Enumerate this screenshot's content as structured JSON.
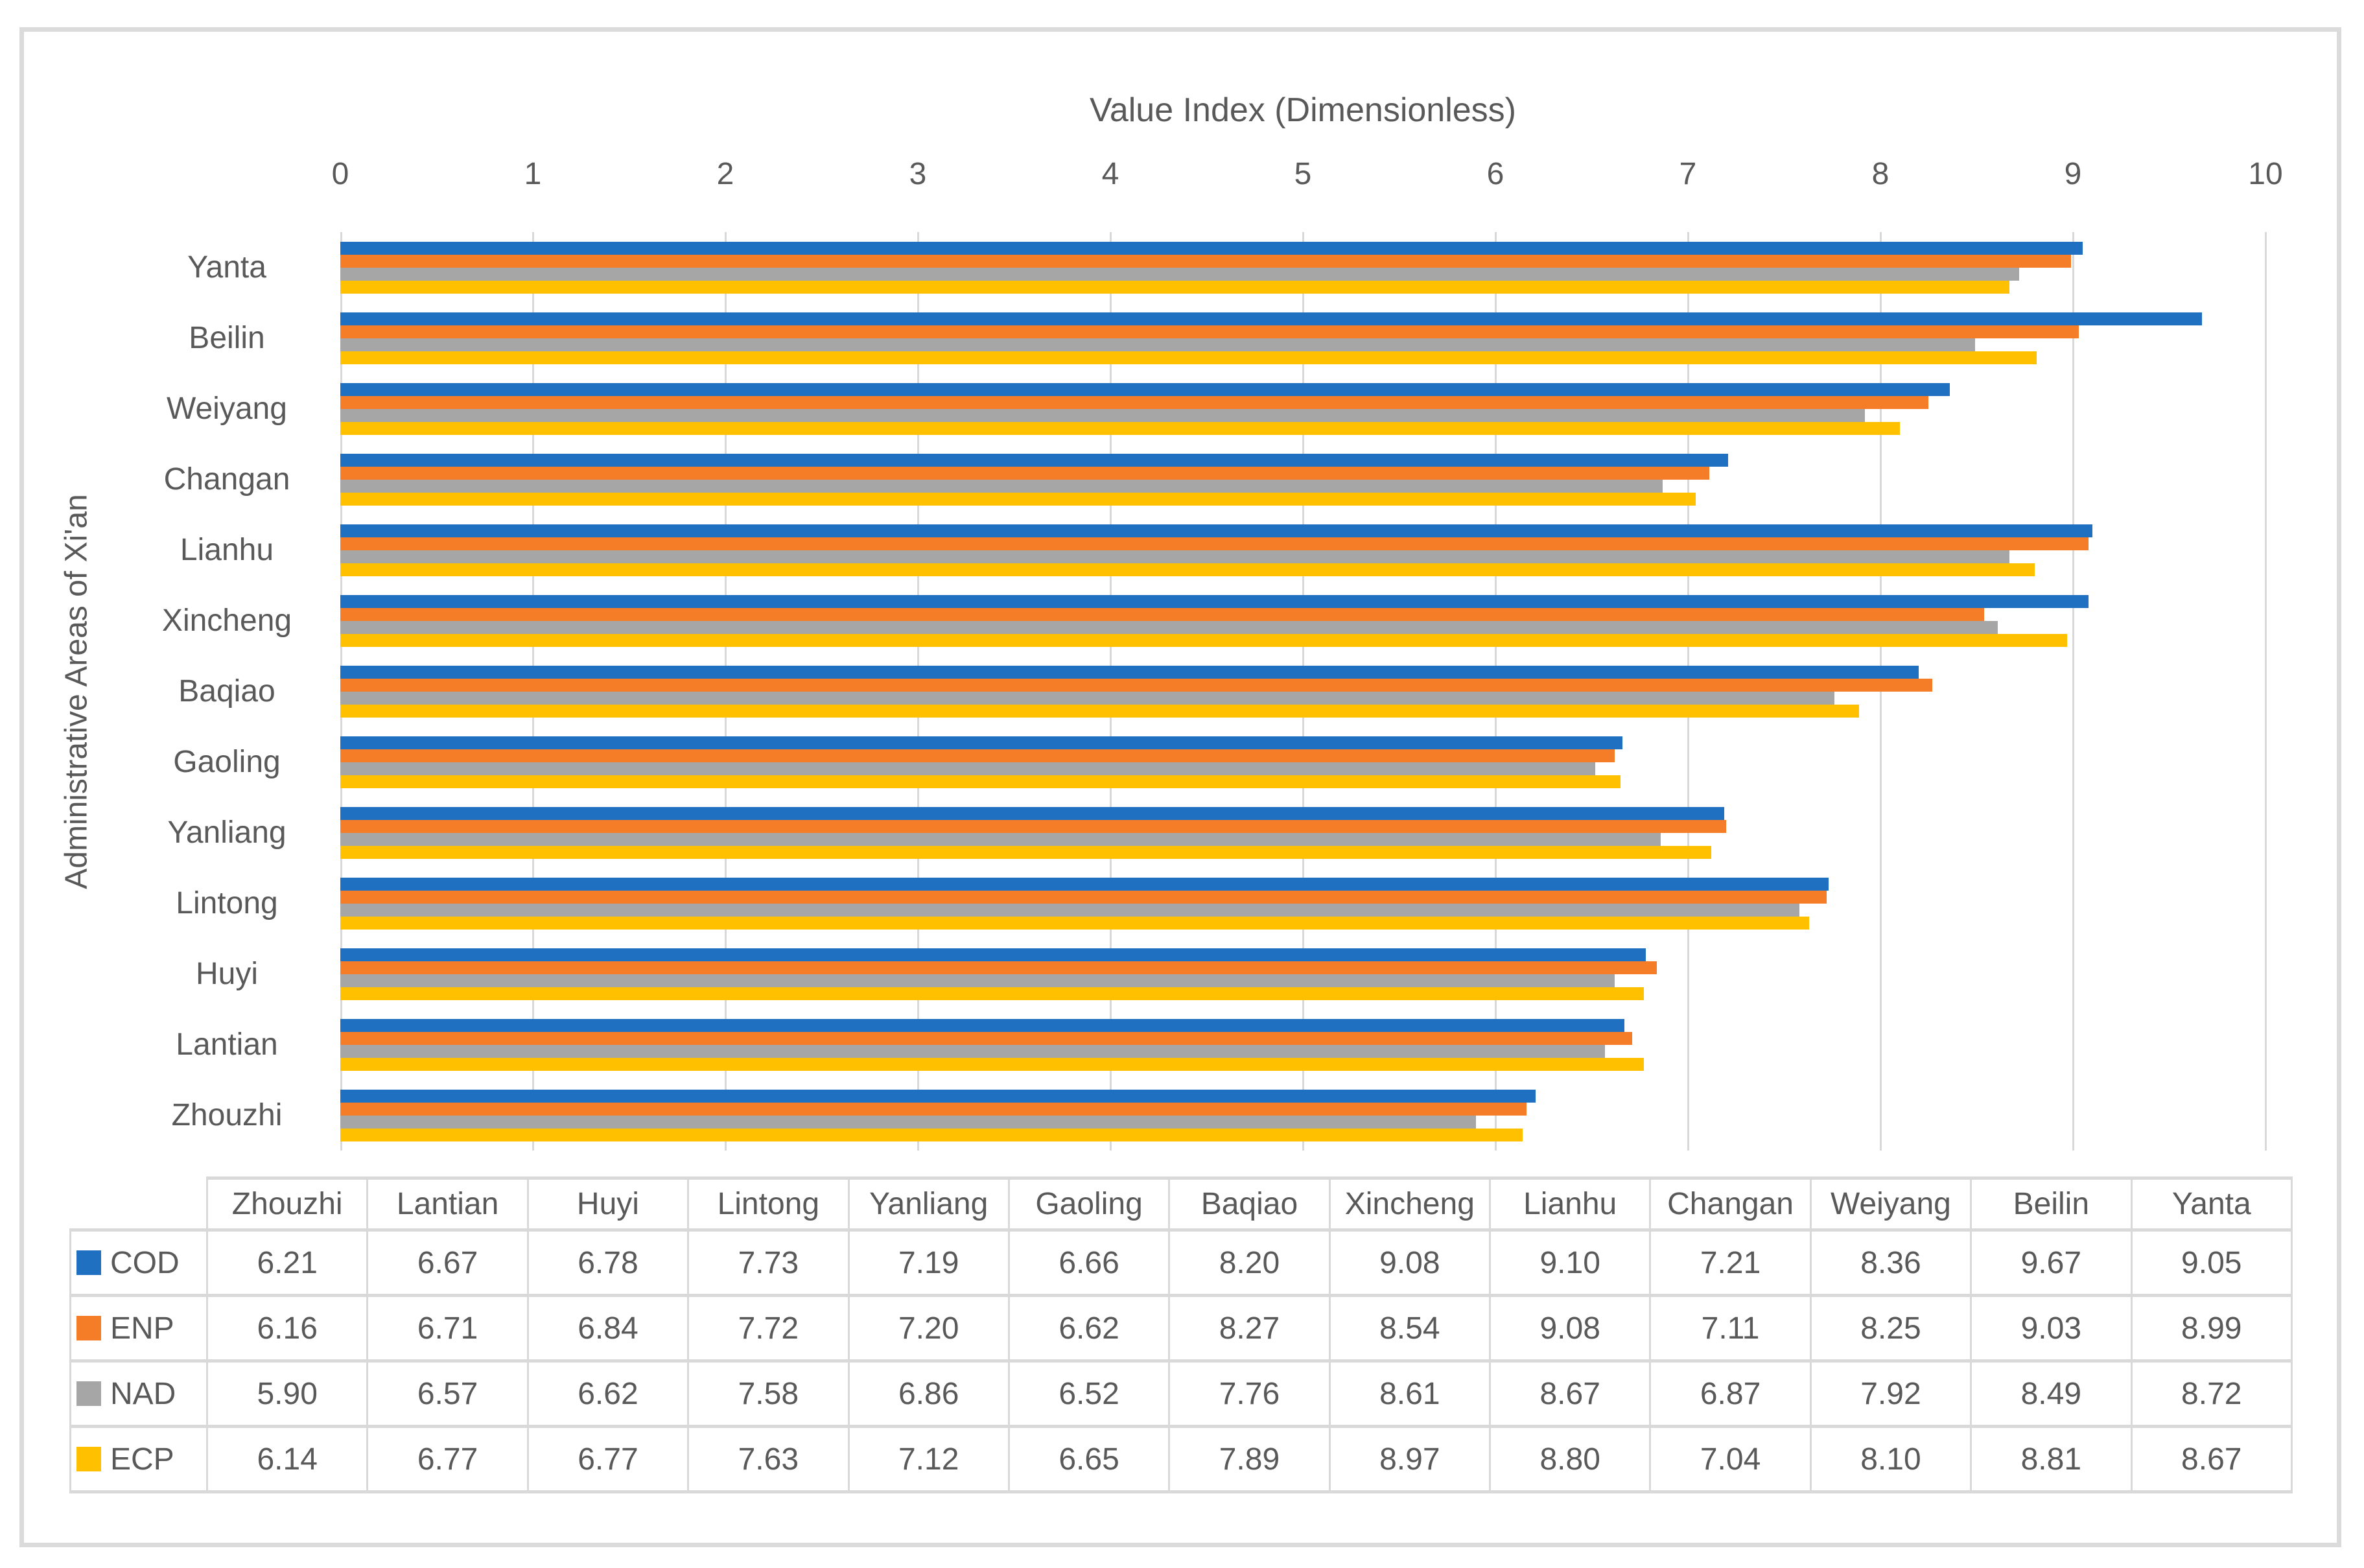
{
  "colors": {
    "text": "#595959",
    "gridline": "#D9D9D9",
    "table_border": "#D9D9D9",
    "frame_border": "#DBDBDB",
    "background": "#FFFFFF",
    "series_cod": "#1F70C1",
    "series_enp": "#F57D28",
    "series_nad": "#A6A6A6",
    "series_ecp": "#FFC000"
  },
  "chart_data": {
    "type": "bar",
    "orientation": "horizontal",
    "title": "Value Index (Dimensionless)",
    "ylabel": "Administrative Areas of Xi'an",
    "grid": true,
    "axis": {
      "min": 0,
      "max": 10,
      "step": 1,
      "tick_labels": [
        "0",
        "1",
        "2",
        "3",
        "4",
        "5",
        "6",
        "7",
        "8",
        "9",
        "10"
      ]
    },
    "categories_table_order": [
      "Zhouzhi",
      "Lantian",
      "Huyi",
      "Lintong",
      "Yanliang",
      "Gaoling",
      "Baqiao",
      "Xincheng",
      "Lianhu",
      "Changan",
      "Weiyang",
      "Beilin",
      "Yanta"
    ],
    "categories_chart_top_to_bottom": [
      "Yanta",
      "Beilin",
      "Weiyang",
      "Changan",
      "Lianhu",
      "Xincheng",
      "Baqiao",
      "Gaoling",
      "Yanliang",
      "Lintong",
      "Huyi",
      "Lantian",
      "Zhouzhi"
    ],
    "series": [
      {
        "name": "COD",
        "color": "#1F70C1",
        "values": [
          6.21,
          6.67,
          6.78,
          7.73,
          7.19,
          6.66,
          8.2,
          9.08,
          9.1,
          7.21,
          8.36,
          9.67,
          9.05
        ]
      },
      {
        "name": "ENP",
        "color": "#F57D28",
        "values": [
          6.16,
          6.71,
          6.84,
          7.72,
          7.2,
          6.62,
          8.27,
          8.54,
          9.08,
          7.11,
          8.25,
          9.03,
          8.99
        ]
      },
      {
        "name": "NAD",
        "color": "#A6A6A6",
        "values": [
          5.9,
          6.57,
          6.62,
          7.58,
          6.86,
          6.52,
          7.76,
          8.61,
          8.67,
          6.87,
          7.92,
          8.49,
          8.72
        ]
      },
      {
        "name": "ECP",
        "color": "#FFC000",
        "values": [
          6.14,
          6.77,
          6.77,
          7.63,
          7.12,
          6.65,
          7.89,
          8.97,
          8.8,
          7.04,
          8.1,
          8.81,
          8.67
        ]
      }
    ],
    "value_format_decimals": 2,
    "legend_position": "table-left-column"
  }
}
